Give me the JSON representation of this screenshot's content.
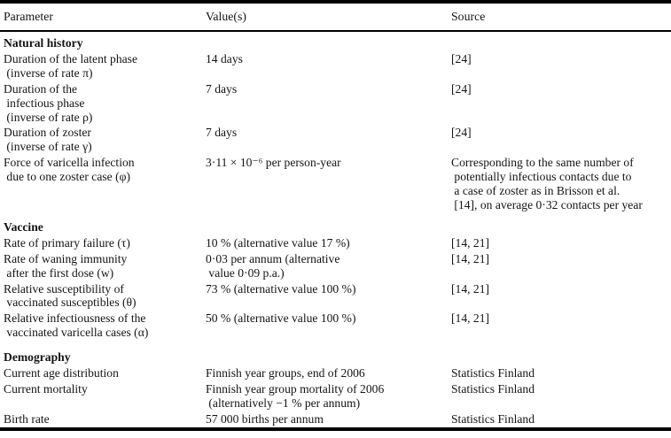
{
  "table": {
    "columns": [
      "Parameter",
      "Value(s)",
      "Source"
    ],
    "rows": [
      {
        "type": "section",
        "label": "Natural history"
      },
      {
        "type": "data",
        "parameter": "Duration of the latent phase\n (inverse of rate π)",
        "value": "14 days",
        "source": "[24]"
      },
      {
        "type": "data",
        "parameter": "Duration of the\n infectious phase\n (inverse of rate ρ)",
        "value": "7 days",
        "source": "[24]"
      },
      {
        "type": "data",
        "parameter": "Duration of zoster\n (inverse of rate γ)",
        "value": "7 days",
        "source": "[24]"
      },
      {
        "type": "data",
        "parameter": "Force of varicella infection\n due to one zoster case (φ)",
        "value": "3·11 × 10⁻⁶ per person-year",
        "source": "Corresponding to the same number of\n potentially infectious contacts due to\n a case of zoster as in Brisson et al.\n [14], on average 0·32 contacts per year"
      },
      {
        "type": "section",
        "label": "Vaccine"
      },
      {
        "type": "data",
        "parameter": "Rate of primary failure (τ)",
        "value": "10 % (alternative value 17 %)",
        "source": "[14, 21]"
      },
      {
        "type": "data",
        "parameter": "Rate of waning immunity\n after the first dose (w)",
        "value": "0·03 per annum (alternative\n value 0·09 p.a.)",
        "source": "[14, 21]"
      },
      {
        "type": "data",
        "parameter": "Relative susceptibility of\n vaccinated susceptibles (θ)",
        "value": "73 % (alternative value 100 %)",
        "source": "[14, 21]"
      },
      {
        "type": "data",
        "parameter": "Relative infectiousness of the\n vaccinated varicella cases (α)",
        "value": "50 % (alternative value 100 %)",
        "source": "[14, 21]"
      },
      {
        "type": "section",
        "label": "Demography"
      },
      {
        "type": "data",
        "parameter": "Current age distribution",
        "value": "Finnish year groups, end of 2006",
        "source": "Statistics Finland"
      },
      {
        "type": "data",
        "parameter": "Current mortality",
        "value": "Finnish year group mortality of 2006\n (alternatively −1 % per annum)",
        "source": "Statistics Finland"
      },
      {
        "type": "data",
        "parameter": "Birth rate",
        "value": "57 000 births per annum",
        "source": "Statistics Finland"
      }
    ]
  }
}
